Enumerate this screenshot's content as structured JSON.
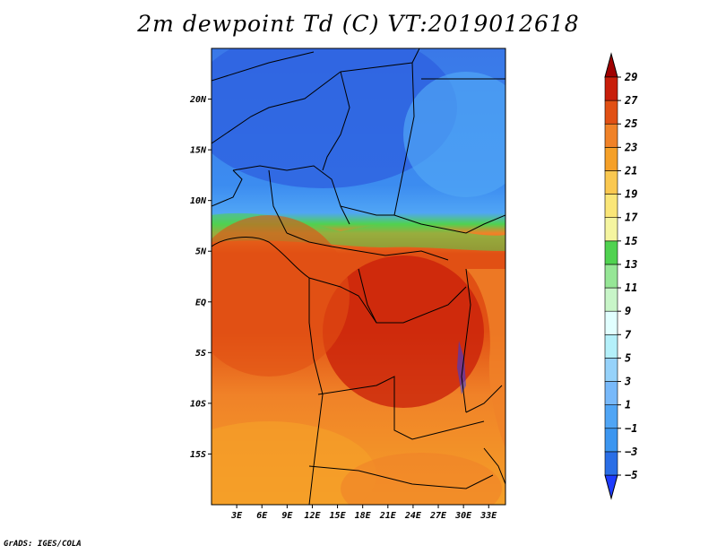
{
  "title": "2m dewpoint Td (C) VT:2019012618",
  "footer": "GrADS: IGES/COLA",
  "map": {
    "lon_labels": [
      "3E",
      "6E",
      "9E",
      "12E",
      "15E",
      "18E",
      "21E",
      "24E",
      "27E",
      "30E",
      "33E"
    ],
    "lon_values": [
      3,
      6,
      9,
      12,
      15,
      18,
      21,
      24,
      27,
      30,
      33
    ],
    "lat_labels": [
      "20N",
      "15N",
      "10N",
      "5N",
      "EQ",
      "5S",
      "10S",
      "15S"
    ],
    "lat_values": [
      20,
      15,
      10,
      5,
      0,
      -5,
      -10,
      -15
    ],
    "lon_range": [
      0,
      35
    ],
    "lat_range": [
      -20,
      25
    ]
  },
  "colorbar": {
    "labels": [
      "29",
      "27",
      "25",
      "23",
      "21",
      "19",
      "17",
      "15",
      "13",
      "11",
      "9",
      "7",
      "5",
      "3",
      "1",
      "−1",
      "−3",
      "−5"
    ],
    "colors": [
      "#1e3cff",
      "#2a6ee6",
      "#3c96f0",
      "#50a5f5",
      "#78b9fa",
      "#96d2fa",
      "#b4f0fa",
      "#e1ffff",
      "#c8f5c8",
      "#96e696",
      "#50d250",
      "#f5f5a0",
      "#fae678",
      "#fac850",
      "#f5a028",
      "#f08228",
      "#e15014",
      "#c81e0a",
      "#a00000"
    ]
  }
}
